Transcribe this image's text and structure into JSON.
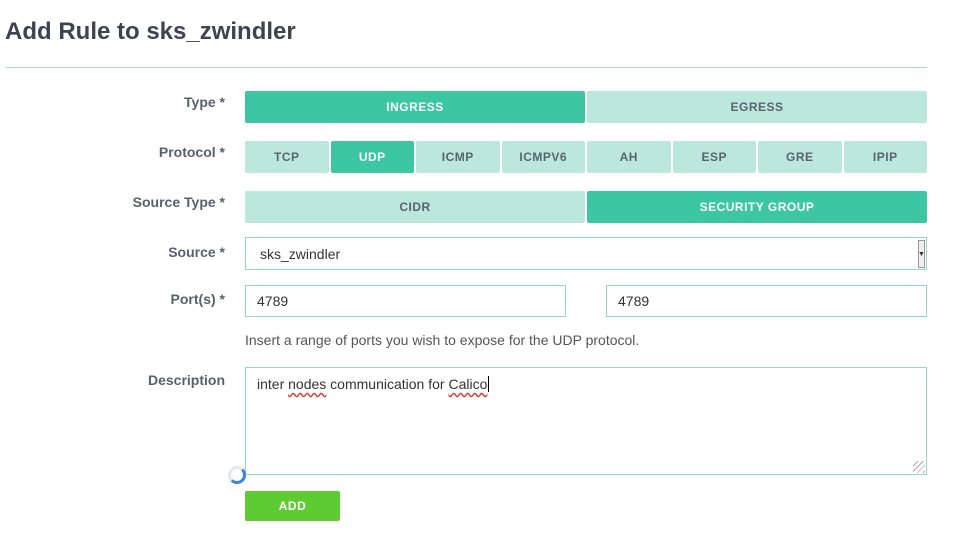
{
  "title": "Add Rule to sks_zwindler",
  "type": {
    "label": "Type *",
    "options": [
      "INGRESS",
      "EGRESS"
    ],
    "selected": "INGRESS"
  },
  "protocol": {
    "label": "Protocol *",
    "options": [
      "TCP",
      "UDP",
      "ICMP",
      "ICMPV6",
      "AH",
      "ESP",
      "GRE",
      "IPIP"
    ],
    "selected": "UDP"
  },
  "source_type": {
    "label": "Source Type *",
    "options": [
      "CIDR",
      "SECURITY GROUP"
    ],
    "selected": "SECURITY GROUP"
  },
  "source": {
    "label": "Source *",
    "value": "sks_zwindler"
  },
  "ports": {
    "label": "Port(s) *",
    "from": "4789",
    "to": "4789",
    "help": "Insert a range of ports you wish to expose for the UDP protocol."
  },
  "description": {
    "label": "Description",
    "value_parts": [
      "inter ",
      "nodes",
      " communication for ",
      "Calico"
    ]
  },
  "add_label": "ADD",
  "colors": {
    "active": "#3cc6a3",
    "inactive": "#bbe7dd",
    "add": "#5ecb32"
  }
}
